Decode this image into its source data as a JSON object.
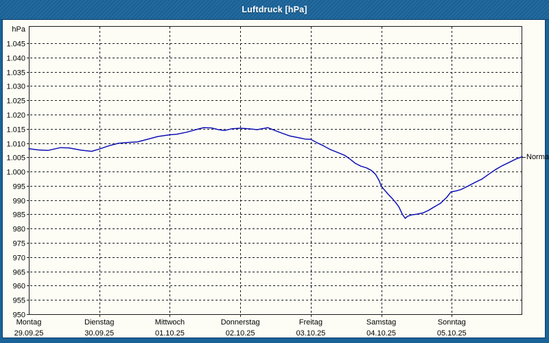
{
  "window": {
    "title": "Luftdruck [hPa]"
  },
  "colors": {
    "frame_blue": "#1a6399",
    "titlebar_blue": "#1a6399",
    "panel_bg": "#fdfdf6",
    "panel_border": "#0e3a63",
    "grid": "#1a1a1a",
    "axis_text": "#000000",
    "title_text": "#ffffff",
    "line_blue": "#0f10b5"
  },
  "chart_data": {
    "type": "line",
    "title": "Luftdruck [hPa]",
    "unit_label": "hPa",
    "normal_label": "Normal",
    "normal_value_hpa": 1005,
    "ylabel": "hPa",
    "ylim": [
      950,
      1045
    ],
    "y_tick_step": 5,
    "y_tick_labels": [
      "950",
      "955",
      "960",
      "965",
      "970",
      "975",
      "980",
      "985",
      "990",
      "995",
      "1.000",
      "1.005",
      "1.010",
      "1.015",
      "1.020",
      "1.025",
      "1.030",
      "1.035",
      "1.040",
      "1.045"
    ],
    "grid": "dashed",
    "legend_position": "none",
    "x_days": [
      {
        "name": "Montag",
        "date": "29.09.25"
      },
      {
        "name": "Dienstag",
        "date": "30.09.25"
      },
      {
        "name": "Mittwoch",
        "date": "01.10.25"
      },
      {
        "name": "Donnerstag",
        "date": "02.10.25"
      },
      {
        "name": "Freitag",
        "date": "03.10.25"
      },
      {
        "name": "Samstag",
        "date": "04.10.25"
      },
      {
        "name": "Sonntag",
        "date": "05.10.25"
      }
    ],
    "series": [
      {
        "name": "Luftdruck",
        "unit": "hPa",
        "x_unit": "days_since_monday_00h",
        "points": [
          [
            0.0,
            1008.0
          ],
          [
            0.13,
            1007.6
          ],
          [
            0.27,
            1007.4
          ],
          [
            0.45,
            1008.4
          ],
          [
            0.57,
            1008.3
          ],
          [
            0.74,
            1007.5
          ],
          [
            0.89,
            1007.1
          ],
          [
            1.0,
            1007.9
          ],
          [
            1.13,
            1009.0
          ],
          [
            1.27,
            1009.9
          ],
          [
            1.39,
            1010.2
          ],
          [
            1.54,
            1010.4
          ],
          [
            1.68,
            1011.3
          ],
          [
            1.83,
            1012.3
          ],
          [
            2.0,
            1012.9
          ],
          [
            2.1,
            1013.1
          ],
          [
            2.24,
            1013.8
          ],
          [
            2.37,
            1014.7
          ],
          [
            2.48,
            1015.4
          ],
          [
            2.59,
            1015.3
          ],
          [
            2.69,
            1014.7
          ],
          [
            2.78,
            1014.4
          ],
          [
            2.88,
            1015.0
          ],
          [
            3.0,
            1015.2
          ],
          [
            3.12,
            1015.0
          ],
          [
            3.24,
            1014.7
          ],
          [
            3.39,
            1015.4
          ],
          [
            3.5,
            1014.3
          ],
          [
            3.6,
            1013.4
          ],
          [
            3.7,
            1012.5
          ],
          [
            3.84,
            1011.8
          ],
          [
            3.92,
            1011.4
          ],
          [
            4.0,
            1011.3
          ],
          [
            4.09,
            1010.1
          ],
          [
            4.19,
            1008.9
          ],
          [
            4.28,
            1007.7
          ],
          [
            4.38,
            1006.7
          ],
          [
            4.48,
            1005.7
          ],
          [
            4.56,
            1004.3
          ],
          [
            4.63,
            1002.9
          ],
          [
            4.71,
            1001.9
          ],
          [
            4.79,
            1001.3
          ],
          [
            4.86,
            1000.4
          ],
          [
            4.92,
            999.0
          ],
          [
            4.97,
            996.8
          ],
          [
            5.0,
            994.9
          ],
          [
            5.05,
            993.4
          ],
          [
            5.1,
            992.0
          ],
          [
            5.15,
            990.7
          ],
          [
            5.2,
            989.3
          ],
          [
            5.25,
            987.6
          ],
          [
            5.3,
            985.0
          ],
          [
            5.34,
            983.6
          ],
          [
            5.37,
            984.3
          ],
          [
            5.43,
            984.8
          ],
          [
            5.51,
            985.1
          ],
          [
            5.59,
            985.5
          ],
          [
            5.67,
            986.4
          ],
          [
            5.75,
            987.6
          ],
          [
            5.84,
            988.9
          ],
          [
            5.93,
            991.0
          ],
          [
            5.99,
            992.9
          ],
          [
            6.06,
            993.2
          ],
          [
            6.13,
            993.7
          ],
          [
            6.23,
            994.9
          ],
          [
            6.33,
            996.2
          ],
          [
            6.43,
            997.4
          ],
          [
            6.52,
            999.0
          ],
          [
            6.62,
            1000.7
          ],
          [
            6.72,
            1002.1
          ],
          [
            6.82,
            1003.3
          ],
          [
            6.91,
            1004.4
          ],
          [
            7.0,
            1005.2
          ]
        ]
      }
    ]
  }
}
